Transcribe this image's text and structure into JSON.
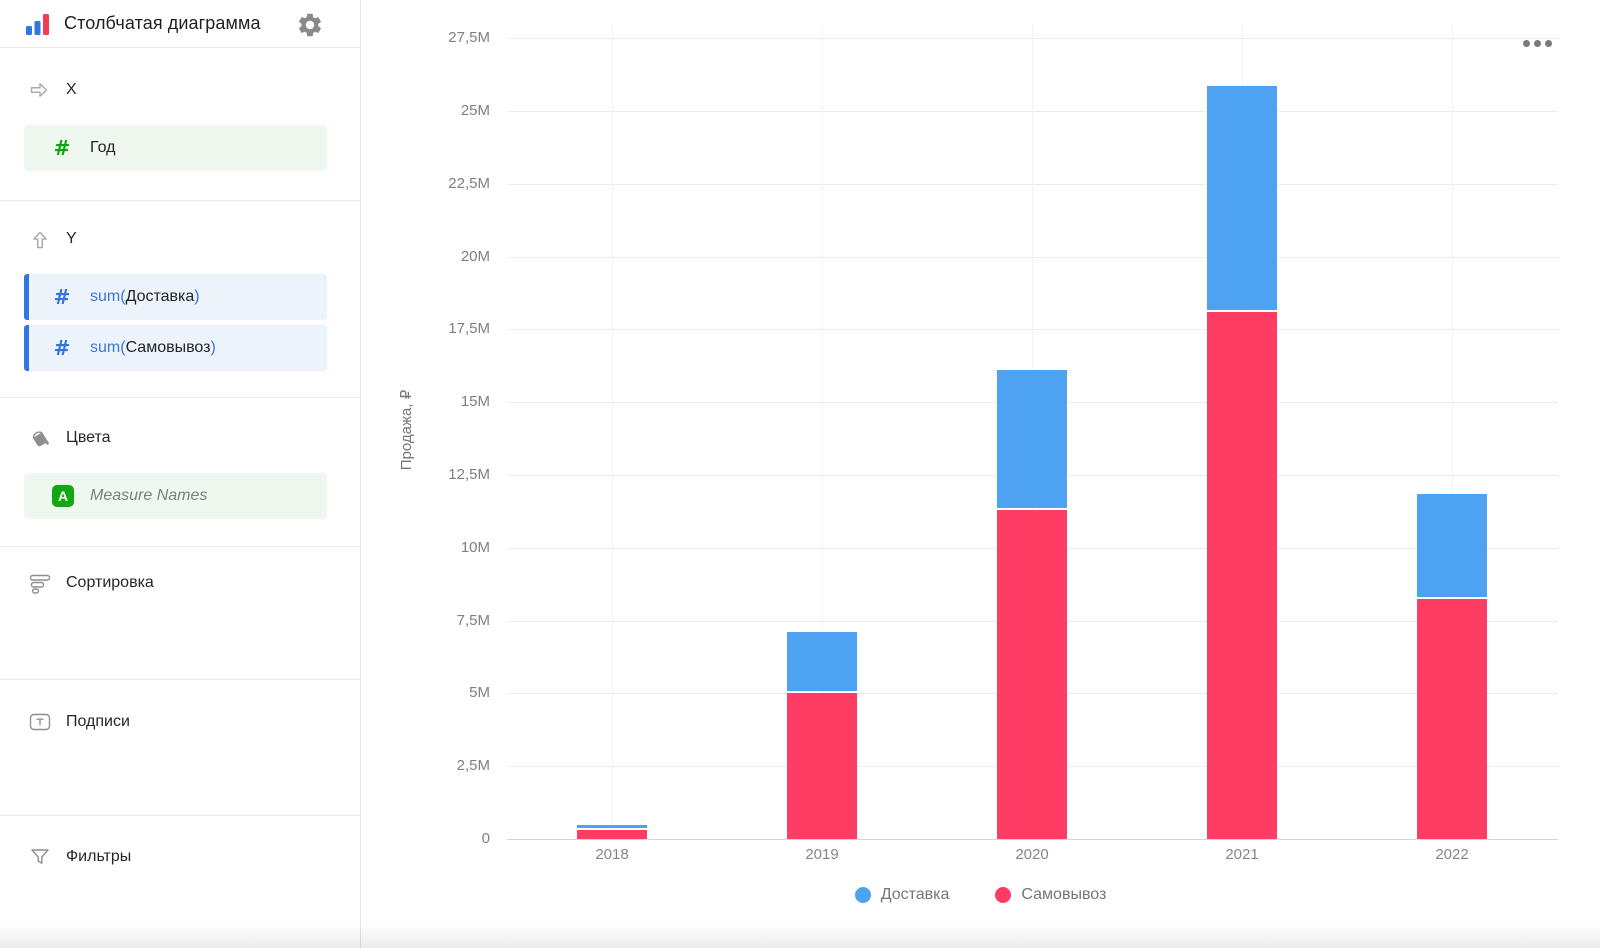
{
  "sidebar": {
    "title": "Столбчатая диаграмма",
    "sections": {
      "x": {
        "label": "X",
        "field": {
          "name": "Год",
          "type": "dimension"
        }
      },
      "y": {
        "label": "Y",
        "fields": [
          {
            "prefix": "sum(",
            "name": "Доставка",
            "suffix": ")",
            "type": "measure"
          },
          {
            "prefix": "sum(",
            "name": "Самовывоз",
            "suffix": ")",
            "type": "measure"
          }
        ]
      },
      "colors": {
        "label": "Цвета",
        "field": {
          "badge": "A",
          "name": "Measure Names"
        }
      },
      "sorting": {
        "label": "Сортировка"
      },
      "labels": {
        "label": "Подписи"
      },
      "filters": {
        "label": "Фильтры"
      }
    }
  },
  "icons": {
    "hash_glyph": "#"
  },
  "chart_data": {
    "type": "bar",
    "stacked": true,
    "categories": [
      "2018",
      "2019",
      "2020",
      "2021",
      "2022"
    ],
    "series": [
      {
        "name": "Доставка",
        "color": "#4da2f1",
        "values_millions": [
          0.16,
          2.1,
          4.8,
          7.75,
          3.6
        ]
      },
      {
        "name": "Самовывоз",
        "color": "#ff3d64",
        "values_millions": [
          0.32,
          5.0,
          11.3,
          18.1,
          8.25
        ]
      }
    ],
    "stack_order_bottom_to_top": [
      "Самовывоз",
      "Доставка"
    ],
    "ylabel": "Продажа, ₽",
    "ylim_millions": [
      0,
      27.5
    ],
    "ytick_step_millions": 2.5,
    "ytick_labels": [
      "0",
      "2,5M",
      "5M",
      "7,5M",
      "10M",
      "12,5M",
      "15M",
      "17,5M",
      "20M",
      "22,5M",
      "25M",
      "27,5M"
    ],
    "grid": true,
    "legend_position": "bottom"
  }
}
